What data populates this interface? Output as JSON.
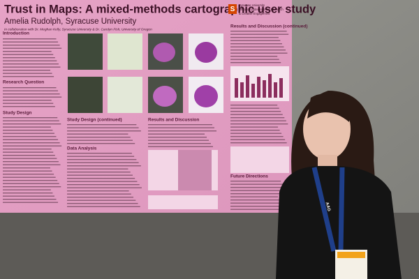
{
  "poster": {
    "title": "Trust in Maps: A mixed-methods cartographic user study",
    "author": "Amelia Rudolph, Syracuse University",
    "collaboration": "In collaboration with Dr. Meghan Kelly, Syracuse University & Dr. Carolyn Fish, University of Oregon",
    "logo": {
      "mark": "S",
      "lines": [
        "Syracuse University",
        "Office of Undergraduate Research",
        "& Creative Engagement"
      ]
    },
    "sections": [
      "Introduction",
      "Research Question",
      "Study Design",
      "Study Design (continued)",
      "Data Analysis",
      "Results and Discussion",
      "Results and Discussion (continued)",
      "Future Directions"
    ]
  },
  "lanyard": "AAG"
}
